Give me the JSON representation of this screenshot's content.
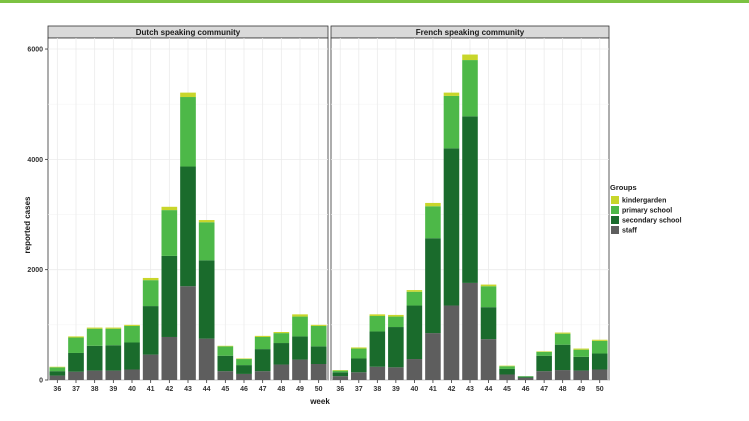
{
  "chart_data": {
    "type": "bar",
    "stacked": true,
    "xlabel": "week",
    "ylabel": "reported cases",
    "ylim": [
      0,
      6200
    ],
    "yticks": [
      0,
      2000,
      4000,
      6000
    ],
    "grid": true,
    "legend": {
      "title": "Groups",
      "placement": "right",
      "entries": [
        "kindergarden",
        "primary school",
        "secondary school",
        "staff"
      ]
    },
    "colors": {
      "kindergarden": "#c8d62b",
      "primary school": "#4db848",
      "secondary school": "#1a6b2c",
      "staff": "#5e5e5e"
    },
    "categories": [
      "36",
      "37",
      "38",
      "39",
      "40",
      "41",
      "42",
      "43",
      "44",
      "45",
      "46",
      "47",
      "48",
      "49",
      "50"
    ],
    "panels": [
      {
        "title": "Dutch speaking community",
        "series": [
          {
            "name": "staff",
            "values": [
              80,
              150,
              170,
              170,
              190,
              460,
              780,
              1700,
              750,
              160,
              110,
              160,
              280,
              370,
              290
            ]
          },
          {
            "name": "secondary school",
            "values": [
              80,
              340,
              450,
              460,
              490,
              880,
              1470,
              2170,
              1420,
              280,
              160,
              400,
              390,
              420,
              320
            ]
          },
          {
            "name": "primary school",
            "values": [
              70,
              280,
              310,
              300,
              300,
              470,
              830,
              1260,
              690,
              170,
              110,
              220,
              180,
              360,
              370
            ]
          },
          {
            "name": "kindergarden",
            "values": [
              10,
              20,
              20,
              20,
              20,
              40,
              60,
              80,
              40,
              10,
              10,
              20,
              20,
              40,
              20
            ]
          }
        ]
      },
      {
        "title": "French speaking community",
        "series": [
          {
            "name": "staff",
            "values": [
              70,
              140,
              240,
              230,
              380,
              850,
              1350,
              1760,
              740,
              100,
              40,
              160,
              180,
              170,
              190
            ]
          },
          {
            "name": "secondary school",
            "values": [
              70,
              250,
              640,
              730,
              970,
              1720,
              2850,
              3020,
              580,
              100,
              20,
              280,
              460,
              250,
              290
            ]
          },
          {
            "name": "primary school",
            "values": [
              30,
              180,
              280,
              190,
              250,
              580,
              950,
              1020,
              380,
              50,
              10,
              70,
              200,
              130,
              230
            ]
          },
          {
            "name": "kindergarden",
            "values": [
              10,
              20,
              30,
              30,
              30,
              60,
              60,
              100,
              30,
              10,
              0,
              10,
              20,
              20,
              20
            ]
          }
        ]
      }
    ]
  }
}
